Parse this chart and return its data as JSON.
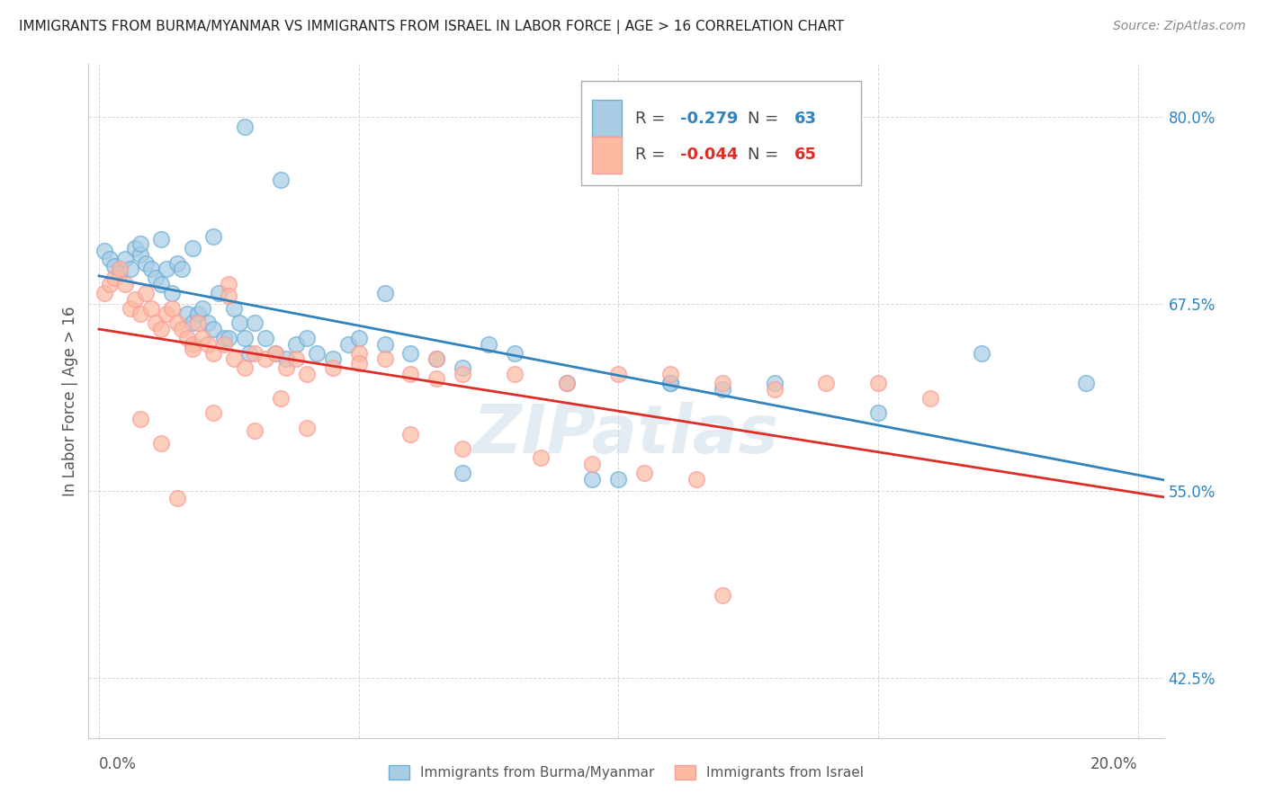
{
  "title": "IMMIGRANTS FROM BURMA/MYANMAR VS IMMIGRANTS FROM ISRAEL IN LABOR FORCE | AGE > 16 CORRELATION CHART",
  "source": "Source: ZipAtlas.com",
  "ylabel": "In Labor Force | Age > 16",
  "yticks": [
    0.425,
    0.55,
    0.675,
    0.8
  ],
  "ytick_labels": [
    "42.5%",
    "55.0%",
    "67.5%",
    "80.0%"
  ],
  "xlim": [
    -0.002,
    0.205
  ],
  "ylim": [
    0.385,
    0.835
  ],
  "legend_blue_r": "-0.279",
  "legend_blue_n": "63",
  "legend_pink_r": "-0.044",
  "legend_pink_n": "65",
  "blue_color": "#a8cce4",
  "blue_edge_color": "#6baed6",
  "pink_color": "#fcbba1",
  "pink_edge_color": "#fb9a99",
  "blue_line_color": "#3182bd",
  "pink_line_color": "#de2d26",
  "watermark": "ZIPatlas",
  "blue_scatter_x": [
    0.001,
    0.002,
    0.003,
    0.004,
    0.005,
    0.006,
    0.007,
    0.008,
    0.009,
    0.01,
    0.011,
    0.012,
    0.013,
    0.014,
    0.015,
    0.016,
    0.017,
    0.018,
    0.019,
    0.02,
    0.021,
    0.022,
    0.023,
    0.024,
    0.025,
    0.026,
    0.027,
    0.028,
    0.029,
    0.03,
    0.032,
    0.034,
    0.036,
    0.038,
    0.04,
    0.042,
    0.045,
    0.048,
    0.05,
    0.055,
    0.06,
    0.065,
    0.07,
    0.075,
    0.08,
    0.09,
    0.1,
    0.11,
    0.12,
    0.13,
    0.15,
    0.17,
    0.19,
    0.028,
    0.035,
    0.022,
    0.018,
    0.012,
    0.008,
    0.055,
    0.07,
    0.095,
    0.11
  ],
  "blue_scatter_y": [
    0.71,
    0.705,
    0.7,
    0.695,
    0.705,
    0.698,
    0.712,
    0.708,
    0.702,
    0.698,
    0.692,
    0.688,
    0.698,
    0.682,
    0.702,
    0.698,
    0.668,
    0.662,
    0.668,
    0.672,
    0.662,
    0.658,
    0.682,
    0.652,
    0.652,
    0.672,
    0.662,
    0.652,
    0.642,
    0.662,
    0.652,
    0.642,
    0.638,
    0.648,
    0.652,
    0.642,
    0.638,
    0.648,
    0.652,
    0.648,
    0.642,
    0.638,
    0.632,
    0.648,
    0.642,
    0.622,
    0.558,
    0.622,
    0.618,
    0.622,
    0.602,
    0.642,
    0.622,
    0.793,
    0.758,
    0.72,
    0.712,
    0.718,
    0.715,
    0.682,
    0.562,
    0.558,
    0.622
  ],
  "pink_scatter_x": [
    0.001,
    0.002,
    0.003,
    0.004,
    0.005,
    0.006,
    0.007,
    0.008,
    0.009,
    0.01,
    0.011,
    0.012,
    0.013,
    0.014,
    0.015,
    0.016,
    0.017,
    0.018,
    0.019,
    0.02,
    0.021,
    0.022,
    0.024,
    0.026,
    0.028,
    0.03,
    0.032,
    0.034,
    0.036,
    0.038,
    0.04,
    0.045,
    0.05,
    0.055,
    0.06,
    0.065,
    0.07,
    0.08,
    0.09,
    0.1,
    0.11,
    0.12,
    0.13,
    0.14,
    0.15,
    0.16,
    0.025,
    0.015,
    0.035,
    0.022,
    0.008,
    0.012,
    0.04,
    0.06,
    0.07,
    0.085,
    0.095,
    0.105,
    0.115,
    0.018,
    0.025,
    0.03,
    0.05,
    0.065,
    0.12
  ],
  "pink_scatter_y": [
    0.682,
    0.688,
    0.692,
    0.698,
    0.688,
    0.672,
    0.678,
    0.668,
    0.682,
    0.672,
    0.662,
    0.658,
    0.668,
    0.672,
    0.662,
    0.658,
    0.652,
    0.648,
    0.662,
    0.652,
    0.648,
    0.642,
    0.648,
    0.638,
    0.632,
    0.642,
    0.638,
    0.642,
    0.632,
    0.638,
    0.628,
    0.632,
    0.642,
    0.638,
    0.628,
    0.638,
    0.628,
    0.628,
    0.622,
    0.628,
    0.628,
    0.622,
    0.618,
    0.622,
    0.622,
    0.612,
    0.688,
    0.545,
    0.612,
    0.602,
    0.598,
    0.582,
    0.592,
    0.588,
    0.578,
    0.572,
    0.568,
    0.562,
    0.558,
    0.645,
    0.68,
    0.59,
    0.635,
    0.625,
    0.48
  ],
  "grid_color": "#cccccc",
  "spine_color": "#cccccc"
}
